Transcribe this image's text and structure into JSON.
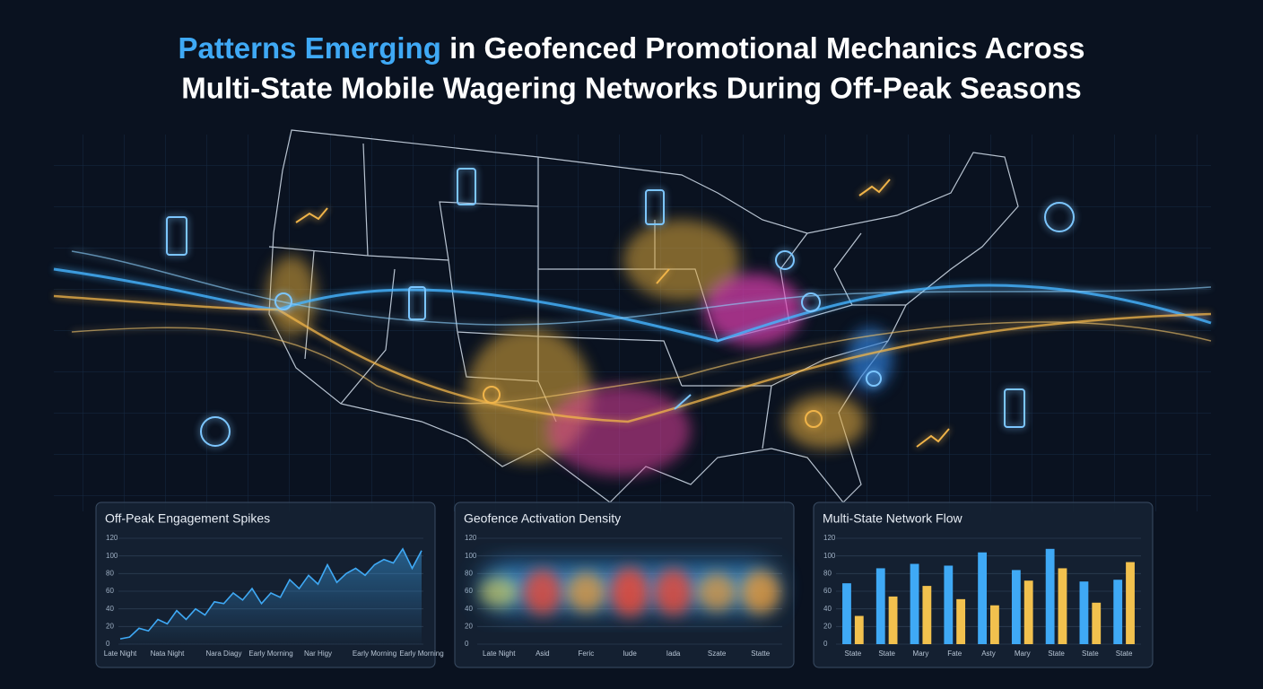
{
  "header": {
    "title_highlight": "Patterns Emerging",
    "title_rest": "in Geofenced Promotional Mechanics Across",
    "title_line2": "Multi-State Mobile Wagering Networks During Off-Peak Seasons"
  },
  "chart_data": [
    {
      "type": "line",
      "title": "Off-Peak Engagement Spikes",
      "color": "#3fa9f5",
      "categories": [
        "Late Night",
        null,
        null,
        null,
        null,
        "Nata Night",
        null,
        null,
        null,
        null,
        null,
        "Nara Diagy",
        null,
        null,
        null,
        null,
        "Early Morning",
        null,
        null,
        null,
        null,
        "Nar Higy",
        null,
        null,
        null,
        null,
        null,
        "Early Morning",
        null,
        null,
        null,
        null,
        "Early Morning"
      ],
      "values": [
        6,
        8,
        18,
        15,
        28,
        23,
        38,
        28,
        40,
        33,
        48,
        46,
        58,
        50,
        63,
        46,
        58,
        53,
        73,
        63,
        78,
        68,
        90,
        70,
        80,
        86,
        78,
        90,
        96,
        92,
        108,
        86,
        106
      ],
      "ylim": [
        0,
        120
      ],
      "yticks": [
        0,
        20,
        40,
        60,
        80,
        100,
        120
      ],
      "grid": true
    },
    {
      "type": "density",
      "title": "Geofence Activation Density",
      "categories": [
        "Late Night",
        "Asid",
        "Feric",
        "Iude",
        "Iada",
        "Szate",
        "Statte"
      ],
      "values": [
        45,
        85,
        70,
        95,
        88,
        65,
        80
      ],
      "ylim": [
        0,
        120
      ],
      "yticks": [
        0,
        20,
        40,
        60,
        80,
        100,
        120
      ],
      "grid": true
    },
    {
      "type": "bar",
      "title": "Multi-State Network Flow",
      "categories": [
        "State",
        "State",
        "Mary",
        "Fate",
        "Asty",
        "Mary",
        "State",
        "State",
        "State"
      ],
      "series": [
        {
          "color": "#3fa9f5",
          "values": [
            69,
            86,
            91,
            89,
            104,
            84,
            108,
            71,
            73
          ]
        },
        {
          "color": "#f2c14e",
          "values": [
            32,
            54,
            66,
            51,
            44,
            72,
            86,
            47,
            93
          ]
        }
      ],
      "ylim": [
        0,
        120
      ],
      "yticks": [
        0,
        20,
        40,
        60,
        80,
        100,
        120
      ],
      "grid": true
    }
  ]
}
